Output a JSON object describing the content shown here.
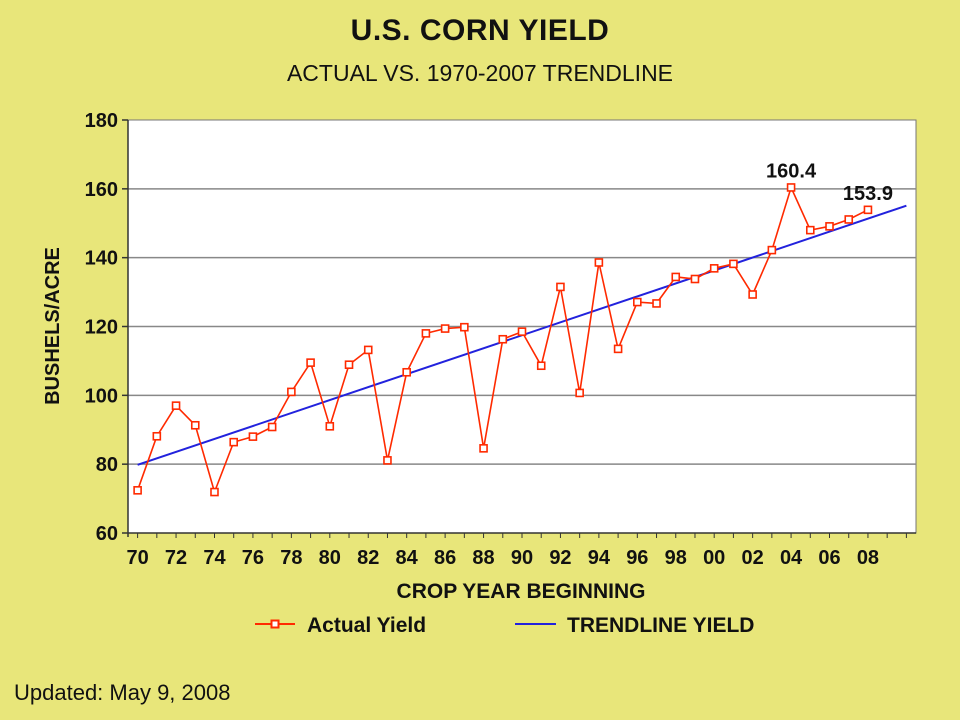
{
  "header": {
    "title": "U.S. CORN YIELD",
    "subtitle": "ACTUAL VS. 1970-2007 TRENDLINE"
  },
  "footer": {
    "updated": "Updated: May 9, 2008"
  },
  "colors": {
    "background": "#e8e67a",
    "plot_area": "#ffffff",
    "actual": "#ff2a00",
    "trend": "#2222dd",
    "grid": "#888888"
  },
  "chart_data": {
    "type": "line",
    "xlabel": "CROP YEAR BEGINNING",
    "ylabel": "BUSHELS/ACRE",
    "ylim": [
      60,
      180
    ],
    "yticks": [
      60,
      80,
      100,
      120,
      140,
      160,
      180
    ],
    "xlim": [
      1969.5,
      2010.5
    ],
    "xtick_values": [
      1970,
      1972,
      1974,
      1976,
      1978,
      1980,
      1982,
      1984,
      1986,
      1988,
      1990,
      1992,
      1994,
      1996,
      1998,
      2000,
      2002,
      2004,
      2006,
      2008
    ],
    "xtick_labels": [
      "70",
      "72",
      "74",
      "76",
      "78",
      "80",
      "82",
      "84",
      "86",
      "88",
      "90",
      "92",
      "94",
      "96",
      "98",
      "00",
      "02",
      "04",
      "06",
      "08"
    ],
    "grid": "horizontal",
    "legend": "bottom",
    "series": [
      {
        "name": "Actual Yield",
        "marker": "square",
        "x": [
          1970,
          1971,
          1972,
          1973,
          1974,
          1975,
          1976,
          1977,
          1978,
          1979,
          1980,
          1981,
          1982,
          1983,
          1984,
          1985,
          1986,
          1987,
          1988,
          1989,
          1990,
          1991,
          1992,
          1993,
          1994,
          1995,
          1996,
          1997,
          1998,
          1999,
          2000,
          2001,
          2002,
          2003,
          2004,
          2005,
          2006,
          2007,
          2008
        ],
        "values": [
          72.4,
          88.1,
          97.0,
          91.3,
          71.9,
          86.4,
          88.0,
          90.8,
          101.0,
          109.5,
          91.0,
          108.9,
          113.2,
          81.1,
          106.7,
          118.0,
          119.4,
          119.8,
          84.6,
          116.3,
          118.5,
          108.6,
          131.5,
          100.7,
          138.6,
          113.5,
          127.1,
          126.7,
          134.4,
          133.8,
          136.9,
          138.2,
          129.3,
          142.2,
          160.4,
          148.0,
          149.1,
          151.1,
          153.9
        ]
      },
      {
        "name": "TRENDLINE YIELD",
        "marker": "none",
        "x": [
          1970,
          2010
        ],
        "values": [
          79.8,
          155.1
        ]
      }
    ],
    "annotations": [
      {
        "text": "160.4",
        "x": 2004,
        "y": 160.4
      },
      {
        "text": "153.9",
        "x": 2008,
        "y": 153.9
      }
    ]
  }
}
